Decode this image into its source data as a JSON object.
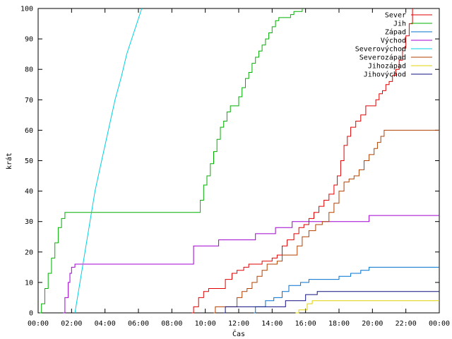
{
  "chart_data": {
    "type": "line",
    "xlabel": "Čas",
    "ylabel": "krát",
    "xlim": [
      0,
      24
    ],
    "ylim": [
      0,
      100
    ],
    "x_ticks": [
      {
        "value": 0,
        "label": "00:00"
      },
      {
        "value": 2,
        "label": "02:00"
      },
      {
        "value": 4,
        "label": "04:00"
      },
      {
        "value": 6,
        "label": "06:00"
      },
      {
        "value": 8,
        "label": "08:00"
      },
      {
        "value": 10,
        "label": "10:00"
      },
      {
        "value": 12,
        "label": "12:00"
      },
      {
        "value": 14,
        "label": "14:00"
      },
      {
        "value": 16,
        "label": "16:00"
      },
      {
        "value": 18,
        "label": "18:00"
      },
      {
        "value": 20,
        "label": "20:00"
      },
      {
        "value": 22,
        "label": "22:00"
      },
      {
        "value": 24,
        "label": "00:00"
      }
    ],
    "y_ticks": [
      {
        "value": 0,
        "label": "0"
      },
      {
        "value": 10,
        "label": "10"
      },
      {
        "value": 20,
        "label": "20"
      },
      {
        "value": 30,
        "label": "30"
      },
      {
        "value": 40,
        "label": "40"
      },
      {
        "value": 50,
        "label": "50"
      },
      {
        "value": 60,
        "label": "60"
      },
      {
        "value": 70,
        "label": "70"
      },
      {
        "value": 80,
        "label": "80"
      },
      {
        "value": 90,
        "label": "90"
      },
      {
        "value": 100,
        "label": "100"
      }
    ],
    "grid": false,
    "legend_position": "top-right",
    "series": [
      {
        "name": "Sever",
        "color": "#e00000",
        "step": true,
        "points": [
          [
            9.2,
            0
          ],
          [
            9.3,
            2
          ],
          [
            9.6,
            5
          ],
          [
            9.9,
            7
          ],
          [
            10.2,
            8
          ],
          [
            11.0,
            8
          ],
          [
            11.2,
            11
          ],
          [
            11.6,
            13
          ],
          [
            11.9,
            14
          ],
          [
            12.3,
            15
          ],
          [
            12.6,
            16
          ],
          [
            13.0,
            16
          ],
          [
            13.4,
            17
          ],
          [
            13.8,
            17
          ],
          [
            14.0,
            18
          ],
          [
            14.3,
            19
          ],
          [
            14.6,
            22
          ],
          [
            14.9,
            24
          ],
          [
            15.3,
            26
          ],
          [
            15.6,
            28
          ],
          [
            15.9,
            29
          ],
          [
            16.2,
            31
          ],
          [
            16.5,
            33
          ],
          [
            16.8,
            35
          ],
          [
            17.1,
            37
          ],
          [
            17.4,
            39
          ],
          [
            17.7,
            42
          ],
          [
            17.9,
            45
          ],
          [
            18.1,
            50
          ],
          [
            18.3,
            55
          ],
          [
            18.5,
            58
          ],
          [
            18.7,
            61
          ],
          [
            19.0,
            63
          ],
          [
            19.3,
            65
          ],
          [
            19.6,
            68
          ],
          [
            19.9,
            68
          ],
          [
            20.2,
            70
          ],
          [
            20.4,
            72
          ],
          [
            20.6,
            73
          ],
          [
            20.8,
            75
          ],
          [
            21.0,
            76
          ],
          [
            21.2,
            78
          ],
          [
            21.4,
            80
          ],
          [
            21.6,
            83
          ],
          [
            21.8,
            87
          ],
          [
            22.0,
            91
          ],
          [
            22.2,
            95
          ],
          [
            22.4,
            100
          ]
        ]
      },
      {
        "name": "Jih",
        "color": "#00b000",
        "step": true,
        "points": [
          [
            0.1,
            0
          ],
          [
            0.2,
            3
          ],
          [
            0.4,
            8
          ],
          [
            0.6,
            13
          ],
          [
            0.8,
            18
          ],
          [
            1.0,
            23
          ],
          [
            1.2,
            28
          ],
          [
            1.4,
            31
          ],
          [
            1.6,
            33
          ],
          [
            9.5,
            33
          ],
          [
            9.7,
            37
          ],
          [
            9.9,
            42
          ],
          [
            10.1,
            45
          ],
          [
            10.3,
            49
          ],
          [
            10.5,
            53
          ],
          [
            10.7,
            57
          ],
          [
            10.9,
            61
          ],
          [
            11.1,
            63
          ],
          [
            11.3,
            66
          ],
          [
            11.5,
            68
          ],
          [
            11.8,
            68
          ],
          [
            12.0,
            71
          ],
          [
            12.2,
            74
          ],
          [
            12.4,
            77
          ],
          [
            12.6,
            79
          ],
          [
            12.8,
            82
          ],
          [
            13.0,
            84
          ],
          [
            13.2,
            86
          ],
          [
            13.4,
            88
          ],
          [
            13.6,
            90
          ],
          [
            13.8,
            92
          ],
          [
            14.0,
            94
          ],
          [
            14.2,
            96
          ],
          [
            14.4,
            97
          ],
          [
            14.9,
            97
          ],
          [
            15.1,
            98
          ],
          [
            15.3,
            99
          ],
          [
            15.6,
            99
          ],
          [
            15.8,
            100
          ]
        ]
      },
      {
        "name": "Západ",
        "color": "#0070d0",
        "step": true,
        "points": [
          [
            12.9,
            0
          ],
          [
            13.0,
            2
          ],
          [
            13.4,
            2
          ],
          [
            13.6,
            4
          ],
          [
            14.1,
            5
          ],
          [
            14.6,
            7
          ],
          [
            15.0,
            9
          ],
          [
            15.7,
            10
          ],
          [
            16.2,
            11
          ],
          [
            17.6,
            11
          ],
          [
            18.0,
            12
          ],
          [
            18.7,
            13
          ],
          [
            19.3,
            14
          ],
          [
            19.8,
            15
          ],
          [
            24.0,
            15
          ]
        ]
      },
      {
        "name": "Východ",
        "color": "#a000d0",
        "step": true,
        "points": [
          [
            1.5,
            0
          ],
          [
            1.6,
            5
          ],
          [
            1.8,
            10
          ],
          [
            1.9,
            13
          ],
          [
            2.0,
            15
          ],
          [
            2.2,
            16
          ],
          [
            9.2,
            16
          ],
          [
            9.3,
            22
          ],
          [
            10.6,
            22
          ],
          [
            10.8,
            24
          ],
          [
            12.8,
            24
          ],
          [
            13.0,
            26
          ],
          [
            14.0,
            26
          ],
          [
            14.2,
            28
          ],
          [
            15.0,
            28
          ],
          [
            15.2,
            30
          ],
          [
            19.6,
            30
          ],
          [
            19.8,
            32
          ],
          [
            24.0,
            32
          ]
        ]
      },
      {
        "name": "Severovýchod",
        "color": "#00d0e0",
        "step": false,
        "points": [
          [
            2.2,
            0
          ],
          [
            2.5,
            10
          ],
          [
            2.8,
            20
          ],
          [
            3.1,
            30
          ],
          [
            3.4,
            40
          ],
          [
            3.8,
            50
          ],
          [
            4.2,
            60
          ],
          [
            4.6,
            70
          ],
          [
            5.0,
            78
          ],
          [
            5.3,
            85
          ],
          [
            5.6,
            90
          ],
          [
            5.9,
            95
          ],
          [
            6.2,
            100
          ]
        ]
      },
      {
        "name": "Severozápad",
        "color": "#b04000",
        "step": true,
        "points": [
          [
            10.5,
            0
          ],
          [
            10.6,
            2
          ],
          [
            11.7,
            2
          ],
          [
            11.9,
            5
          ],
          [
            12.2,
            7
          ],
          [
            12.5,
            8
          ],
          [
            12.8,
            10
          ],
          [
            13.1,
            12
          ],
          [
            13.4,
            14
          ],
          [
            13.7,
            16
          ],
          [
            14.0,
            16
          ],
          [
            14.3,
            17
          ],
          [
            14.6,
            19
          ],
          [
            15.3,
            19
          ],
          [
            15.5,
            22
          ],
          [
            15.8,
            25
          ],
          [
            16.2,
            27
          ],
          [
            16.6,
            29
          ],
          [
            17.0,
            30
          ],
          [
            17.4,
            33
          ],
          [
            17.7,
            36
          ],
          [
            18.0,
            40
          ],
          [
            18.3,
            43
          ],
          [
            18.6,
            44
          ],
          [
            18.9,
            45
          ],
          [
            19.2,
            47
          ],
          [
            19.5,
            50
          ],
          [
            19.8,
            52
          ],
          [
            20.1,
            54
          ],
          [
            20.3,
            56
          ],
          [
            20.5,
            58
          ],
          [
            20.7,
            60
          ],
          [
            24.0,
            60
          ]
        ]
      },
      {
        "name": "Jihozápad",
        "color": "#e0d000",
        "step": true,
        "points": [
          [
            15.4,
            0
          ],
          [
            15.6,
            1
          ],
          [
            16.1,
            3
          ],
          [
            16.4,
            4
          ],
          [
            24.0,
            4
          ]
        ]
      },
      {
        "name": "Jihovýchod",
        "color": "#101080",
        "step": true,
        "points": [
          [
            11.1,
            0
          ],
          [
            11.2,
            2
          ],
          [
            14.6,
            2
          ],
          [
            14.8,
            4
          ],
          [
            15.8,
            4
          ],
          [
            16.0,
            6
          ],
          [
            16.7,
            7
          ],
          [
            24.0,
            7
          ]
        ]
      }
    ]
  }
}
